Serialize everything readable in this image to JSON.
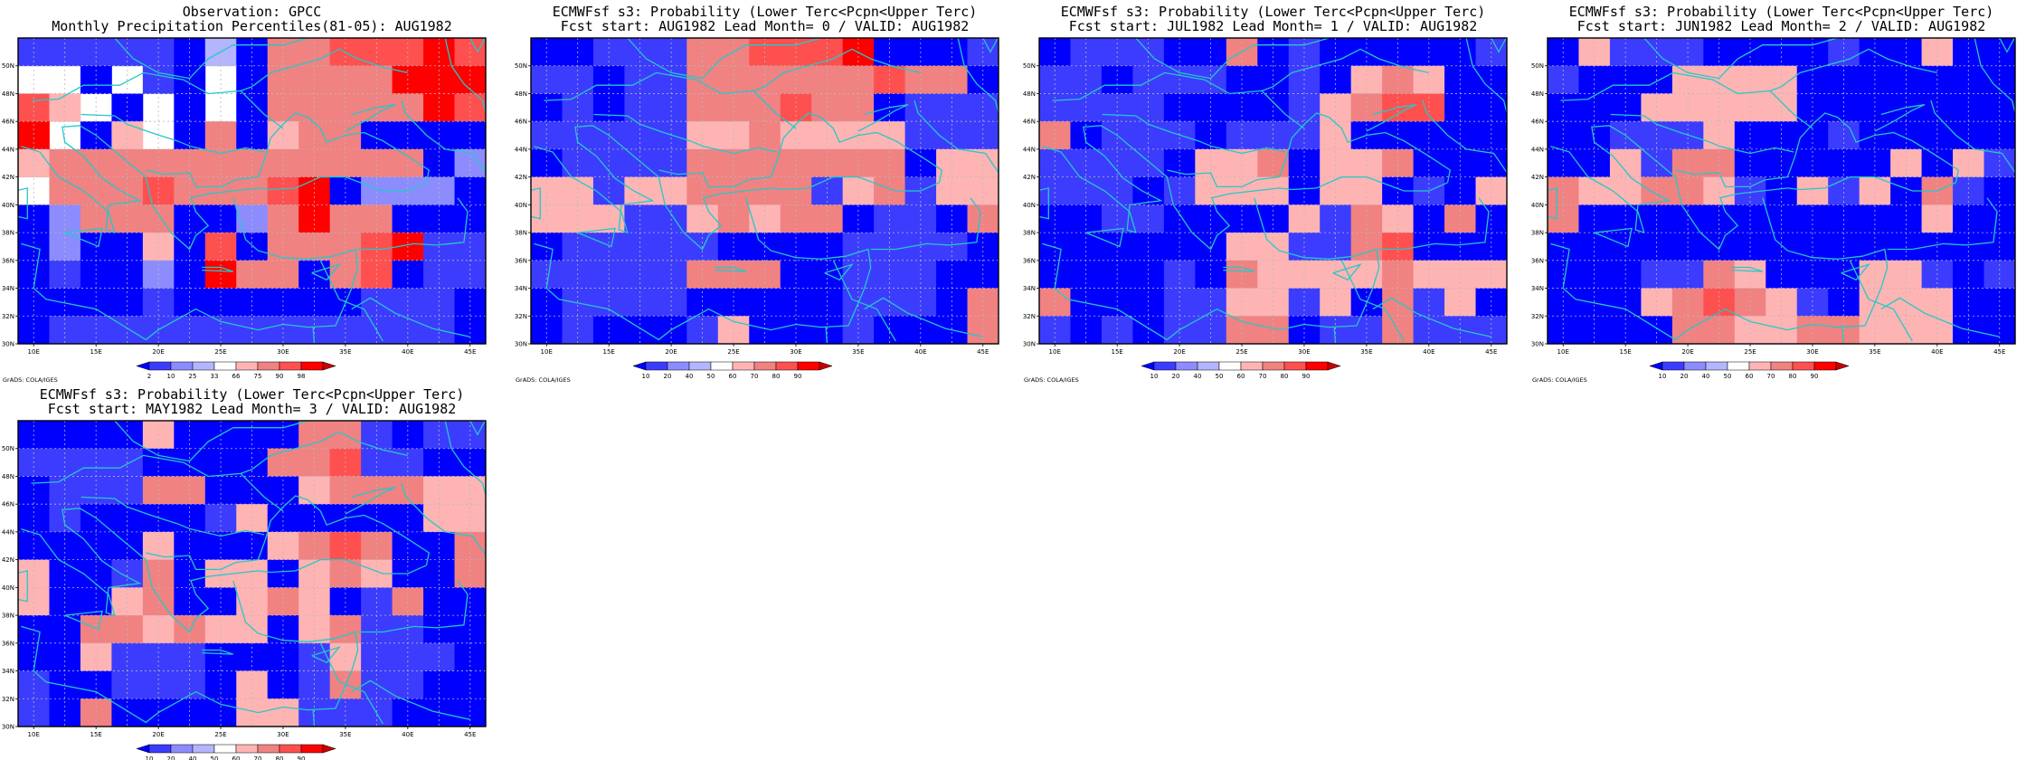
{
  "figure": {
    "colors": {
      "coast": "#25c8c8",
      "frame": "#000000",
      "grid": "#b8b8b8",
      "scale_blue_to_red": [
        "#0000ff",
        "#3c3cff",
        "#8c8cff",
        "#b4b4ff",
        "#ffffff",
        "#ffb4b4",
        "#f08282",
        "#ff5050",
        "#ff0000",
        "#c80000"
      ],
      "obs_scale": [
        "#0000ff",
        "#3c3cff",
        "#8c8cff",
        "#b4b4ff",
        "#ffffff",
        "#ffb4b4",
        "#f08282",
        "#ff5050",
        "#ff0000",
        "#c80000"
      ]
    },
    "credit": "GrADS: COLA/IGES",
    "lon_ticks": [
      "10E",
      "15E",
      "20E",
      "25E",
      "30E",
      "35E",
      "40E",
      "45E"
    ],
    "lat_ticks": [
      "50N",
      "48N",
      "46N",
      "44N",
      "42N",
      "40N",
      "38N",
      "36N",
      "34N",
      "32N",
      "30N"
    ],
    "prob_colorbar_labels": [
      "10",
      "20",
      "40",
      "50",
      "60",
      "70",
      "80",
      "90"
    ],
    "obs_colorbar_labels": [
      "2",
      "10",
      "25",
      "33",
      "66",
      "75",
      "90",
      "98"
    ]
  },
  "chart_data": [
    {
      "type": "heatmap",
      "title": "Observation: GPCC",
      "subtitle": "Monthly Precipitation Percentiles(81-05): AUG1982",
      "x": [
        "10E",
        "12.5E",
        "15E",
        "17.5E",
        "20E",
        "22.5E",
        "25E",
        "27.5E",
        "30E",
        "32.5E",
        "35E",
        "37.5E",
        "40E",
        "42.5E",
        "45E"
      ],
      "y": [
        "51N",
        "49N",
        "47N",
        "45N",
        "43N",
        "41N",
        "39N",
        "37N",
        "35N",
        "33N",
        "31N"
      ],
      "xlim": [
        8.75,
        46.25
      ],
      "ylim": [
        30,
        52
      ],
      "colorbar": "percentile",
      "values": [
        [
          1,
          1,
          1,
          1,
          1,
          0,
          3,
          0,
          6,
          6,
          7,
          7,
          7,
          8,
          7
        ],
        [
          4,
          4,
          0,
          4,
          1,
          0,
          4,
          0,
          6,
          6,
          6,
          6,
          8,
          8,
          8
        ],
        [
          7,
          5,
          4,
          0,
          4,
          0,
          4,
          0,
          6,
          6,
          6,
          6,
          6,
          8,
          7
        ],
        [
          8,
          4,
          0,
          5,
          4,
          0,
          6,
          0,
          5,
          6,
          6,
          0,
          0,
          0,
          0
        ],
        [
          5,
          6,
          6,
          6,
          6,
          6,
          6,
          6,
          6,
          6,
          6,
          6,
          6,
          0,
          2
        ],
        [
          4,
          6,
          6,
          6,
          7,
          6,
          6,
          6,
          7,
          8,
          0,
          2,
          2,
          2,
          0
        ],
        [
          0,
          2,
          6,
          6,
          6,
          0,
          0,
          2,
          6,
          8,
          6,
          6,
          0,
          0,
          0
        ],
        [
          0,
          2,
          0,
          0,
          5,
          0,
          7,
          0,
          6,
          6,
          6,
          7,
          8,
          1,
          1
        ],
        [
          0,
          1,
          0,
          0,
          2,
          0,
          8,
          6,
          6,
          0,
          6,
          7,
          0,
          1,
          1
        ],
        [
          0,
          0,
          0,
          0,
          1,
          0,
          0,
          0,
          0,
          0,
          0,
          1,
          1,
          1,
          0
        ],
        [
          0,
          1,
          1,
          1,
          1,
          1,
          1,
          1,
          1,
          1,
          1,
          1,
          1,
          1,
          0
        ]
      ]
    },
    {
      "type": "heatmap",
      "title": "ECMWFsf s3: Probability (Lower Terc<Pcpn<Upper Terc)",
      "subtitle": "Fcst start: AUG1982   Lead Month= 0 / VALID: AUG1982",
      "x": [
        "10E",
        "12.5E",
        "15E",
        "17.5E",
        "20E",
        "22.5E",
        "25E",
        "27.5E",
        "30E",
        "32.5E",
        "35E",
        "37.5E",
        "40E",
        "42.5E",
        "45E"
      ],
      "y": [
        "51N",
        "49N",
        "47N",
        "45N",
        "43N",
        "41N",
        "39N",
        "37N",
        "35N",
        "33N",
        "31N"
      ],
      "xlim": [
        8.75,
        46.25
      ],
      "ylim": [
        30,
        52
      ],
      "colorbar": "probability",
      "values": [
        [
          0,
          0,
          1,
          1,
          1,
          6,
          6,
          7,
          7,
          7,
          8,
          0,
          0,
          0,
          1
        ],
        [
          1,
          1,
          0,
          1,
          1,
          6,
          6,
          6,
          6,
          6,
          6,
          7,
          6,
          6,
          0
        ],
        [
          0,
          1,
          0,
          1,
          1,
          6,
          6,
          6,
          7,
          6,
          6,
          0,
          1,
          1,
          1
        ],
        [
          1,
          1,
          1,
          1,
          1,
          5,
          5,
          6,
          5,
          5,
          5,
          5,
          1,
          1,
          1
        ],
        [
          0,
          1,
          1,
          1,
          1,
          6,
          6,
          6,
          6,
          6,
          6,
          6,
          0,
          5,
          5
        ],
        [
          5,
          5,
          1,
          5,
          5,
          6,
          6,
          6,
          6,
          1,
          5,
          6,
          1,
          5,
          5
        ],
        [
          5,
          5,
          5,
          1,
          1,
          5,
          6,
          5,
          6,
          6,
          0,
          1,
          1,
          0,
          6
        ],
        [
          0,
          1,
          1,
          1,
          1,
          1,
          0,
          0,
          0,
          0,
          1,
          1,
          1,
          1,
          0
        ],
        [
          1,
          1,
          1,
          1,
          1,
          6,
          6,
          6,
          0,
          0,
          1,
          1,
          1,
          0,
          0
        ],
        [
          0,
          1,
          1,
          1,
          1,
          0,
          0,
          0,
          0,
          0,
          1,
          1,
          1,
          0,
          6
        ],
        [
          0,
          1,
          0,
          0,
          0,
          1,
          5,
          0,
          0,
          0,
          1,
          0,
          0,
          0,
          6
        ]
      ]
    },
    {
      "type": "heatmap",
      "title": "ECMWFsf s3: Probability (Lower Terc<Pcpn<Upper Terc)",
      "subtitle": "Fcst start: JUL1982   Lead Month= 1 / VALID: AUG1982",
      "x": [
        "10E",
        "12.5E",
        "15E",
        "17.5E",
        "20E",
        "22.5E",
        "25E",
        "27.5E",
        "30E",
        "32.5E",
        "35E",
        "37.5E",
        "40E",
        "42.5E",
        "45E"
      ],
      "y": [
        "51N",
        "49N",
        "47N",
        "45N",
        "43N",
        "41N",
        "39N",
        "37N",
        "35N",
        "33N",
        "31N"
      ],
      "xlim": [
        8.75,
        46.25
      ],
      "ylim": [
        30,
        52
      ],
      "colorbar": "probability",
      "values": [
        [
          0,
          1,
          1,
          1,
          0,
          0,
          6,
          0,
          1,
          0,
          0,
          0,
          0,
          0,
          1
        ],
        [
          1,
          1,
          0,
          1,
          1,
          1,
          0,
          0,
          1,
          0,
          5,
          6,
          5,
          0,
          0
        ],
        [
          1,
          1,
          1,
          1,
          0,
          0,
          0,
          0,
          1,
          5,
          6,
          7,
          7,
          0,
          0
        ],
        [
          6,
          0,
          1,
          1,
          1,
          0,
          1,
          1,
          1,
          5,
          0,
          0,
          0,
          0,
          0
        ],
        [
          1,
          1,
          1,
          1,
          0,
          5,
          5,
          6,
          0,
          5,
          5,
          6,
          0,
          0,
          0
        ],
        [
          1,
          1,
          1,
          0,
          1,
          5,
          5,
          5,
          0,
          5,
          5,
          0,
          1,
          0,
          5
        ],
        [
          0,
          0,
          1,
          1,
          0,
          0,
          0,
          0,
          5,
          1,
          6,
          5,
          0,
          6,
          0
        ],
        [
          0,
          0,
          0,
          0,
          0,
          0,
          5,
          5,
          1,
          1,
          6,
          7,
          0,
          0,
          0
        ],
        [
          0,
          0,
          0,
          0,
          1,
          0,
          6,
          5,
          5,
          5,
          5,
          6,
          5,
          5,
          5
        ],
        [
          6,
          0,
          0,
          0,
          1,
          1,
          5,
          5,
          1,
          5,
          0,
          6,
          1,
          5,
          0
        ],
        [
          1,
          0,
          1,
          0,
          1,
          1,
          6,
          6,
          0,
          1,
          1,
          6,
          1,
          1,
          1
        ]
      ]
    },
    {
      "type": "heatmap",
      "title": "ECMWFsf s3: Probability (Lower Terc<Pcpn<Upper Terc)",
      "subtitle": "Fcst start: JUN1982   Lead Month= 2 / VALID: AUG1982",
      "x": [
        "10E",
        "12.5E",
        "15E",
        "17.5E",
        "20E",
        "22.5E",
        "25E",
        "27.5E",
        "30E",
        "32.5E",
        "35E",
        "37.5E",
        "40E",
        "42.5E",
        "45E"
      ],
      "y": [
        "51N",
        "49N",
        "47N",
        "45N",
        "43N",
        "41N",
        "39N",
        "37N",
        "35N",
        "33N",
        "31N"
      ],
      "xlim": [
        8.75,
        46.25
      ],
      "ylim": [
        30,
        52
      ],
      "colorbar": "probability",
      "values": [
        [
          0,
          5,
          1,
          1,
          1,
          0,
          0,
          0,
          0,
          1,
          0,
          0,
          5,
          0,
          0
        ],
        [
          1,
          0,
          0,
          0,
          5,
          5,
          5,
          5,
          0,
          0,
          0,
          0,
          0,
          0,
          0
        ],
        [
          0,
          0,
          0,
          5,
          5,
          5,
          5,
          5,
          0,
          0,
          0,
          0,
          0,
          0,
          0
        ],
        [
          0,
          0,
          1,
          1,
          1,
          5,
          0,
          0,
          0,
          1,
          0,
          0,
          0,
          0,
          0
        ],
        [
          0,
          0,
          5,
          1,
          6,
          6,
          0,
          0,
          0,
          0,
          0,
          5,
          0,
          5,
          1
        ],
        [
          6,
          5,
          5,
          6,
          6,
          5,
          1,
          0,
          5,
          1,
          5,
          0,
          6,
          1,
          0
        ],
        [
          6,
          0,
          0,
          0,
          0,
          0,
          0,
          0,
          0,
          0,
          0,
          0,
          5,
          0,
          0
        ],
        [
          0,
          0,
          0,
          0,
          0,
          0,
          0,
          0,
          0,
          0,
          0,
          0,
          0,
          0,
          0
        ],
        [
          0,
          0,
          0,
          1,
          1,
          6,
          5,
          0,
          0,
          0,
          5,
          5,
          1,
          0,
          1
        ],
        [
          0,
          0,
          0,
          5,
          6,
          7,
          6,
          5,
          1,
          0,
          5,
          5,
          5,
          0,
          0
        ],
        [
          0,
          0,
          0,
          0,
          6,
          6,
          5,
          5,
          6,
          6,
          5,
          5,
          5,
          0,
          0
        ]
      ]
    },
    {
      "type": "heatmap",
      "title": "ECMWFsf s3: Probability (Lower Terc<Pcpn<Upper Terc)",
      "subtitle": "Fcst start: MAY1982   Lead Month= 3 / VALID: AUG1982",
      "x": [
        "10E",
        "12.5E",
        "15E",
        "17.5E",
        "20E",
        "22.5E",
        "25E",
        "27.5E",
        "30E",
        "32.5E",
        "35E",
        "37.5E",
        "40E",
        "42.5E",
        "45E"
      ],
      "y": [
        "51N",
        "49N",
        "47N",
        "45N",
        "43N",
        "41N",
        "39N",
        "37N",
        "35N",
        "33N",
        "31N"
      ],
      "xlim": [
        8.75,
        46.25
      ],
      "ylim": [
        30,
        52
      ],
      "colorbar": "probability",
      "values": [
        [
          0,
          0,
          0,
          0,
          5,
          0,
          0,
          0,
          0,
          6,
          6,
          1,
          0,
          1,
          1
        ],
        [
          1,
          1,
          1,
          1,
          0,
          0,
          0,
          0,
          6,
          6,
          7,
          1,
          1,
          0,
          0
        ],
        [
          0,
          1,
          1,
          1,
          6,
          6,
          0,
          0,
          0,
          5,
          6,
          6,
          6,
          5,
          5
        ],
        [
          0,
          1,
          0,
          0,
          0,
          0,
          1,
          5,
          0,
          0,
          0,
          0,
          0,
          5,
          5
        ],
        [
          0,
          0,
          0,
          0,
          5,
          0,
          0,
          0,
          5,
          6,
          7,
          6,
          0,
          0,
          6
        ],
        [
          5,
          0,
          0,
          1,
          6,
          0,
          5,
          5,
          0,
          5,
          6,
          5,
          0,
          0,
          6
        ],
        [
          5,
          0,
          0,
          5,
          6,
          0,
          0,
          5,
          6,
          5,
          0,
          1,
          6,
          0,
          0
        ],
        [
          0,
          0,
          6,
          6,
          5,
          6,
          5,
          5,
          0,
          5,
          6,
          1,
          1,
          0,
          0
        ],
        [
          0,
          0,
          5,
          1,
          1,
          1,
          0,
          0,
          0,
          1,
          5,
          1,
          1,
          1,
          0
        ],
        [
          1,
          0,
          0,
          1,
          1,
          1,
          0,
          5,
          0,
          1,
          6,
          1,
          1,
          0,
          0
        ],
        [
          1,
          0,
          6,
          0,
          0,
          0,
          0,
          5,
          5,
          1,
          1,
          1,
          0,
          0,
          0
        ]
      ]
    }
  ]
}
